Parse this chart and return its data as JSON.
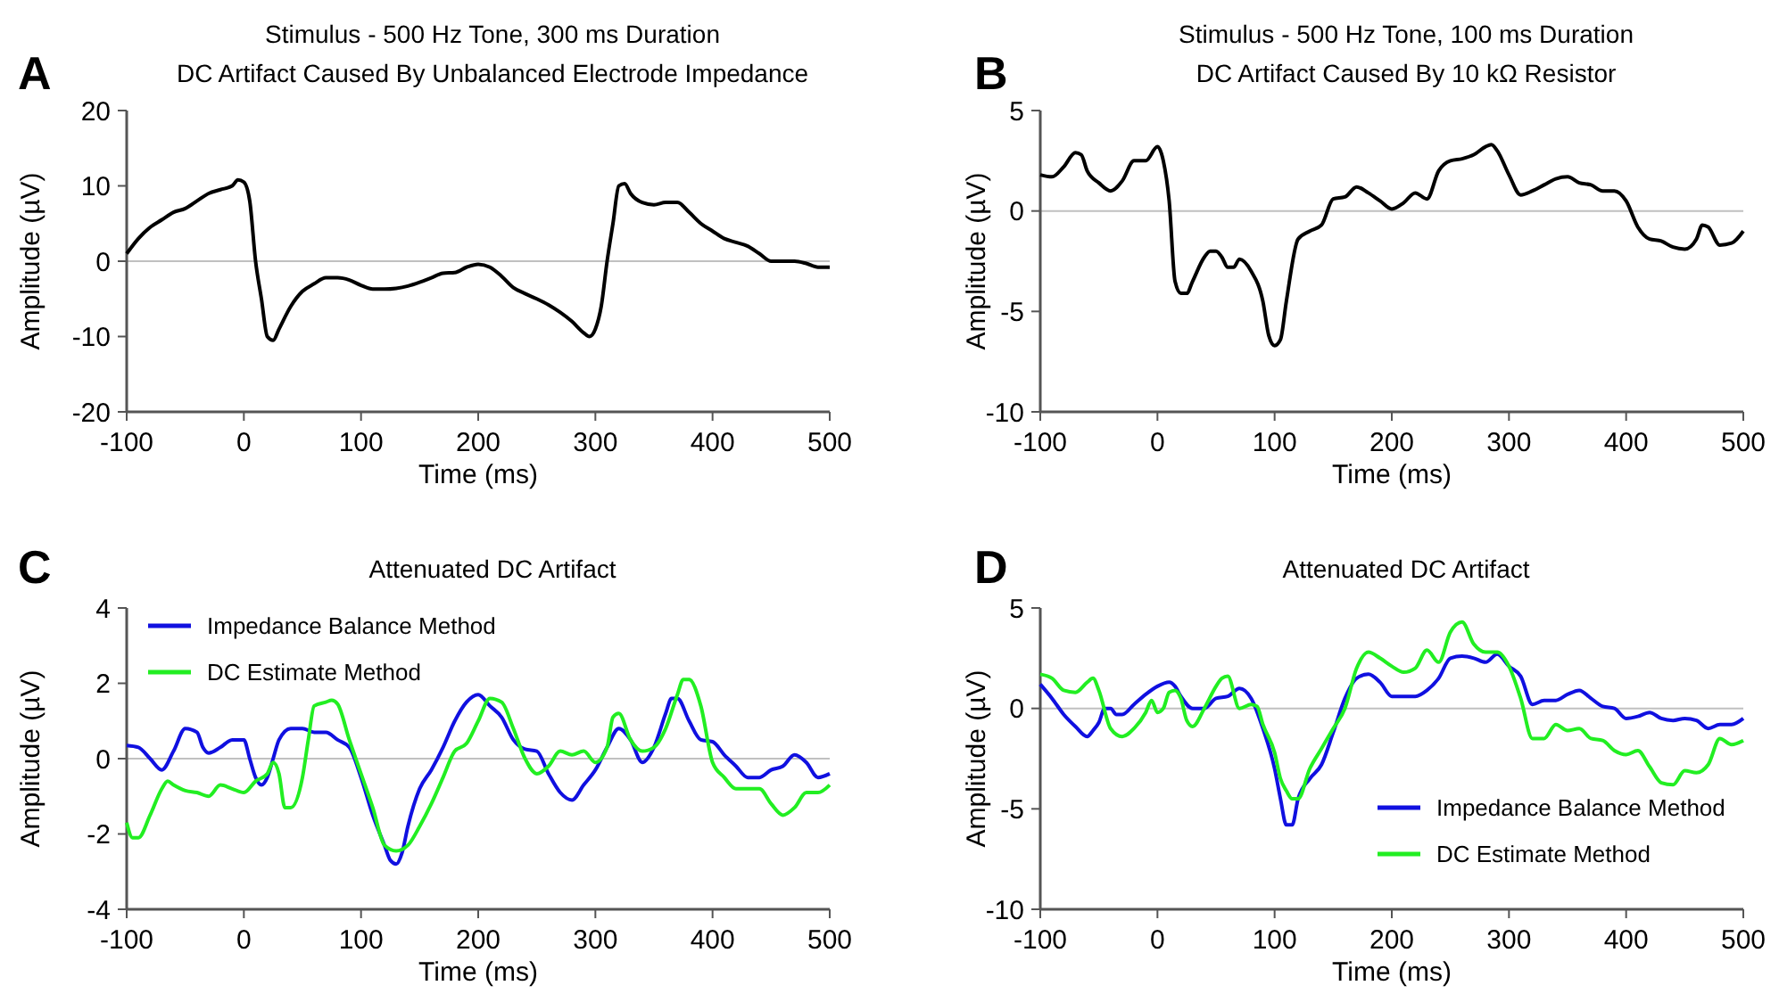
{
  "chart_data": [
    {
      "type": "line",
      "title": "Stimulus - 500 Hz Tone, 300 ms Duration",
      "subtitle": "DC Artifact Caused By Unbalanced Electrode Impedance",
      "xlabel": "Time (ms)",
      "ylabel": "Amplitude (µV)",
      "annotations": [
        "A"
      ],
      "xlim": [
        -100,
        500
      ],
      "xticks": [
        -100,
        0,
        100,
        200,
        300,
        400,
        500
      ],
      "ylim": [
        -20,
        20
      ],
      "yticks": [
        -20,
        -10,
        0,
        10,
        20
      ],
      "grid": false,
      "legend": false,
      "ref_lines": [
        {
          "axis": "y",
          "value": 0,
          "color": "#c0c0c0"
        }
      ],
      "series": [
        {
          "color": "#000000",
          "x": [
            -100,
            -90,
            -80,
            -70,
            -60,
            -50,
            -40,
            -30,
            -20,
            -10,
            -5,
            0,
            5,
            10,
            15,
            20,
            25,
            30,
            40,
            50,
            60,
            70,
            80,
            90,
            100,
            110,
            120,
            130,
            140,
            150,
            160,
            170,
            180,
            190,
            200,
            210,
            220,
            230,
            240,
            250,
            260,
            270,
            280,
            290,
            295,
            300,
            305,
            310,
            315,
            320,
            325,
            330,
            340,
            350,
            360,
            370,
            380,
            390,
            400,
            410,
            420,
            430,
            440,
            450,
            470,
            480,
            490,
            500
          ],
          "values": [
            1,
            3,
            4.5,
            5.5,
            6.5,
            7,
            8,
            9,
            9.5,
            10,
            10.8,
            10.5,
            8,
            0,
            -5,
            -10,
            -10.5,
            -9,
            -6,
            -4,
            -3,
            -2.2,
            -2.2,
            -2.5,
            -3.2,
            -3.7,
            -3.7,
            -3.6,
            -3.3,
            -2.8,
            -2.2,
            -1.6,
            -1.5,
            -0.8,
            -0.4,
            -0.8,
            -2,
            -3.5,
            -4.3,
            -5,
            -5.8,
            -6.8,
            -8,
            -9.5,
            -10,
            -9,
            -6,
            0,
            5,
            10,
            10.3,
            9,
            7.8,
            7.5,
            7.8,
            7.8,
            6.5,
            5,
            4,
            3,
            2.5,
            2,
            1,
            0,
            0,
            -0.3,
            -0.8,
            -0.8
          ]
        }
      ]
    },
    {
      "type": "line",
      "title": "Stimulus - 500 Hz Tone, 100 ms Duration",
      "subtitle": "DC Artifact Caused By 10 kΩ Resistor",
      "xlabel": "Time (ms)",
      "ylabel": "Amplitude (µV)",
      "annotations": [
        "B"
      ],
      "xlim": [
        -100,
        500
      ],
      "xticks": [
        -100,
        0,
        100,
        200,
        300,
        400,
        500
      ],
      "ylim": [
        -10,
        5
      ],
      "yticks": [
        -10,
        -5,
        0,
        5
      ],
      "grid": false,
      "legend": false,
      "ref_lines": [
        {
          "axis": "y",
          "value": 0,
          "color": "#c0c0c0"
        }
      ],
      "series": [
        {
          "color": "#000000",
          "x": [
            -100,
            -90,
            -80,
            -70,
            -65,
            -60,
            -50,
            -40,
            -30,
            -20,
            -10,
            0,
            5,
            10,
            15,
            20,
            25,
            30,
            40,
            45,
            50,
            55,
            60,
            65,
            70,
            80,
            90,
            95,
            100,
            105,
            110,
            120,
            130,
            140,
            150,
            160,
            170,
            180,
            190,
            200,
            210,
            220,
            230,
            240,
            250,
            260,
            270,
            280,
            285,
            290,
            300,
            310,
            320,
            330,
            340,
            350,
            360,
            370,
            380,
            390,
            400,
            410,
            420,
            430,
            440,
            450,
            460,
            465,
            470,
            480,
            490,
            500
          ],
          "values": [
            1.8,
            1.7,
            2.2,
            2.9,
            2.8,
            2,
            1.4,
            1,
            1.5,
            2.5,
            2.5,
            3.2,
            2.5,
            0.5,
            -3.5,
            -4.1,
            -4.1,
            -3.5,
            -2.3,
            -2,
            -2,
            -2.3,
            -2.8,
            -2.8,
            -2.4,
            -3,
            -4.5,
            -6.2,
            -6.7,
            -6.4,
            -4.5,
            -1.4,
            -1,
            -0.7,
            0.6,
            0.7,
            1.2,
            0.9,
            0.5,
            0.1,
            0.4,
            0.9,
            0.6,
            2,
            2.5,
            2.6,
            2.8,
            3.2,
            3.3,
            3,
            1.8,
            0.8,
            1,
            1.3,
            1.6,
            1.7,
            1.4,
            1.3,
            1,
            1,
            0.5,
            -0.8,
            -1.4,
            -1.5,
            -1.8,
            -1.9,
            -1.4,
            -0.7,
            -0.8,
            -1.7,
            -1.6,
            -1
          ]
        }
      ]
    },
    {
      "type": "line",
      "title": "Attenuated DC Artifact",
      "xlabel": "Time (ms)",
      "ylabel": "Amplitude (µV)",
      "annotations": [
        "C"
      ],
      "xlim": [
        -100,
        500
      ],
      "xticks": [
        -100,
        0,
        100,
        200,
        300,
        400,
        500
      ],
      "ylim": [
        -4,
        4
      ],
      "yticks": [
        -4,
        -2,
        0,
        2,
        4
      ],
      "grid": false,
      "legend": "top left",
      "ref_lines": [
        {
          "axis": "y",
          "value": 0,
          "color": "#c0c0c0"
        }
      ],
      "series": [
        {
          "name": "Impedance Balance Method",
          "color": "#1010e0",
          "x": [
            -100,
            -90,
            -80,
            -70,
            -60,
            -50,
            -40,
            -35,
            -30,
            -20,
            -10,
            0,
            5,
            10,
            15,
            20,
            25,
            30,
            40,
            50,
            60,
            70,
            80,
            90,
            100,
            110,
            120,
            125,
            130,
            135,
            140,
            150,
            160,
            170,
            180,
            190,
            200,
            210,
            220,
            230,
            240,
            250,
            260,
            270,
            280,
            290,
            300,
            310,
            320,
            330,
            340,
            350,
            360,
            365,
            370,
            380,
            390,
            400,
            410,
            420,
            430,
            440,
            450,
            460,
            470,
            480,
            490,
            500
          ],
          "values": [
            0.35,
            0.3,
            0,
            -0.3,
            0.2,
            0.8,
            0.7,
            0.3,
            0.15,
            0.3,
            0.5,
            0.5,
            0,
            -0.5,
            -0.7,
            -0.5,
            0,
            0.5,
            0.8,
            0.8,
            0.7,
            0.7,
            0.5,
            0.3,
            -0.5,
            -1.5,
            -2.3,
            -2.7,
            -2.8,
            -2.5,
            -1.8,
            -0.8,
            -0.3,
            0.3,
            1,
            1.5,
            1.7,
            1.4,
            1.1,
            0.5,
            0.25,
            0.2,
            -0.4,
            -0.9,
            -1.1,
            -0.7,
            -0.3,
            0.3,
            0.8,
            0.5,
            -0.1,
            0.3,
            1.2,
            1.6,
            1.6,
            1,
            0.5,
            0.45,
            0.1,
            -0.2,
            -0.5,
            -0.5,
            -0.3,
            -0.2,
            0.1,
            -0.1,
            -0.5,
            -0.4
          ]
        },
        {
          "name": "DC Estimate Method",
          "color": "#22ee22",
          "x": [
            -100,
            -95,
            -90,
            -80,
            -70,
            -65,
            -60,
            -50,
            -40,
            -30,
            -20,
            -10,
            0,
            10,
            20,
            25,
            30,
            35,
            40,
            50,
            55,
            60,
            70,
            75,
            80,
            90,
            100,
            110,
            120,
            130,
            140,
            150,
            160,
            170,
            180,
            190,
            200,
            210,
            220,
            230,
            240,
            250,
            260,
            270,
            280,
            290,
            300,
            310,
            315,
            320,
            330,
            340,
            350,
            360,
            370,
            375,
            380,
            390,
            400,
            410,
            420,
            430,
            440,
            450,
            460,
            470,
            480,
            490,
            500
          ],
          "values": [
            -1.7,
            -2.1,
            -2.1,
            -1.5,
            -0.8,
            -0.6,
            -0.7,
            -0.85,
            -0.9,
            -1,
            -0.7,
            -0.8,
            -0.9,
            -0.6,
            -0.4,
            -0.1,
            -0.4,
            -1.3,
            -1.3,
            -0.5,
            0.5,
            1.4,
            1.5,
            1.55,
            1.45,
            0.5,
            -0.4,
            -1.3,
            -2.3,
            -2.45,
            -2.3,
            -1.8,
            -1.2,
            -0.5,
            0.2,
            0.4,
            1,
            1.6,
            1.5,
            0.8,
            0,
            -0.4,
            -0.2,
            0.2,
            0.1,
            0.2,
            -0.1,
            0.3,
            1.1,
            1.2,
            0.5,
            0.2,
            0.3,
            0.8,
            1.7,
            2.1,
            2.1,
            1.4,
            -0.1,
            -0.5,
            -0.8,
            -0.8,
            -0.8,
            -1.2,
            -1.5,
            -1.3,
            -0.9,
            -0.9,
            -0.7
          ]
        }
      ]
    },
    {
      "type": "line",
      "title": "Attenuated DC Artifact",
      "xlabel": "Time (ms)",
      "ylabel": "Amplitude (µV)",
      "annotations": [
        "D"
      ],
      "xlim": [
        -100,
        500
      ],
      "xticks": [
        -100,
        0,
        100,
        200,
        300,
        400,
        500
      ],
      "ylim": [
        -10,
        5
      ],
      "yticks": [
        -10,
        -5,
        0,
        5
      ],
      "grid": false,
      "legend": "bottom right",
      "ref_lines": [
        {
          "axis": "y",
          "value": 0,
          "color": "#c0c0c0"
        }
      ],
      "series": [
        {
          "name": "Impedance Balance Method",
          "color": "#1010e0",
          "x": [
            -100,
            -90,
            -80,
            -70,
            -60,
            -55,
            -50,
            -45,
            -40,
            -35,
            -30,
            -20,
            -10,
            0,
            10,
            15,
            20,
            30,
            40,
            50,
            60,
            70,
            80,
            90,
            100,
            105,
            110,
            115,
            120,
            130,
            140,
            150,
            160,
            170,
            180,
            190,
            200,
            210,
            220,
            230,
            240,
            250,
            260,
            270,
            280,
            290,
            300,
            310,
            320,
            330,
            340,
            350,
            360,
            370,
            380,
            390,
            400,
            410,
            420,
            430,
            440,
            450,
            460,
            470,
            480,
            490,
            500
          ],
          "values": [
            1.2,
            0.5,
            -0.3,
            -0.9,
            -1.4,
            -1.1,
            -0.7,
            0,
            0,
            -0.3,
            -0.3,
            0.2,
            0.7,
            1.1,
            1.3,
            1.1,
            0.6,
            0,
            0,
            0.5,
            0.6,
            1,
            0.5,
            -1,
            -3,
            -4.5,
            -5.8,
            -5.8,
            -4.5,
            -3.5,
            -2.8,
            -1.2,
            0.5,
            1.5,
            1.7,
            1.3,
            0.6,
            0.6,
            0.6,
            0.9,
            1.5,
            2.5,
            2.6,
            2.5,
            2.3,
            2.7,
            2.1,
            1.6,
            0.2,
            0.4,
            0.4,
            0.7,
            0.9,
            0.5,
            0.1,
            0,
            -0.5,
            -0.4,
            -0.2,
            -0.5,
            -0.6,
            -0.5,
            -0.6,
            -1,
            -0.8,
            -0.8,
            -0.5
          ]
        },
        {
          "name": "DC Estimate Method",
          "color": "#22ee22",
          "x": [
            -100,
            -90,
            -80,
            -70,
            -60,
            -55,
            -50,
            -40,
            -30,
            -20,
            -10,
            -5,
            0,
            5,
            10,
            15,
            20,
            25,
            30,
            40,
            50,
            55,
            60,
            70,
            80,
            85,
            90,
            100,
            105,
            110,
            115,
            120,
            130,
            140,
            150,
            160,
            170,
            180,
            190,
            200,
            210,
            220,
            230,
            240,
            250,
            260,
            270,
            280,
            290,
            300,
            310,
            320,
            330,
            340,
            350,
            360,
            370,
            380,
            390,
            400,
            410,
            420,
            430,
            440,
            450,
            460,
            470,
            480,
            490,
            500
          ],
          "values": [
            1.7,
            1.5,
            0.9,
            0.8,
            1.3,
            1.5,
            0.9,
            -1,
            -1.4,
            -1,
            -0.2,
            0.4,
            -0.2,
            0,
            0.8,
            0.9,
            0.5,
            -0.6,
            -0.9,
            0,
            1.1,
            1.5,
            1.6,
            0,
            0.2,
            0.1,
            -0.8,
            -2.2,
            -3.5,
            -4.1,
            -4.5,
            -4.5,
            -3,
            -2,
            -1,
            0,
            2,
            2.8,
            2.5,
            2.1,
            1.8,
            2,
            2.9,
            2.3,
            3.8,
            4.3,
            3.2,
            2.8,
            2.8,
            2.1,
            0.5,
            -1.5,
            -1.5,
            -0.8,
            -1.1,
            -1,
            -1.5,
            -1.6,
            -2.1,
            -2.3,
            -2.1,
            -2.9,
            -3.7,
            -3.8,
            -3.1,
            -3.2,
            -2.8,
            -1.5,
            -1.8,
            -1.6
          ]
        }
      ]
    }
  ]
}
